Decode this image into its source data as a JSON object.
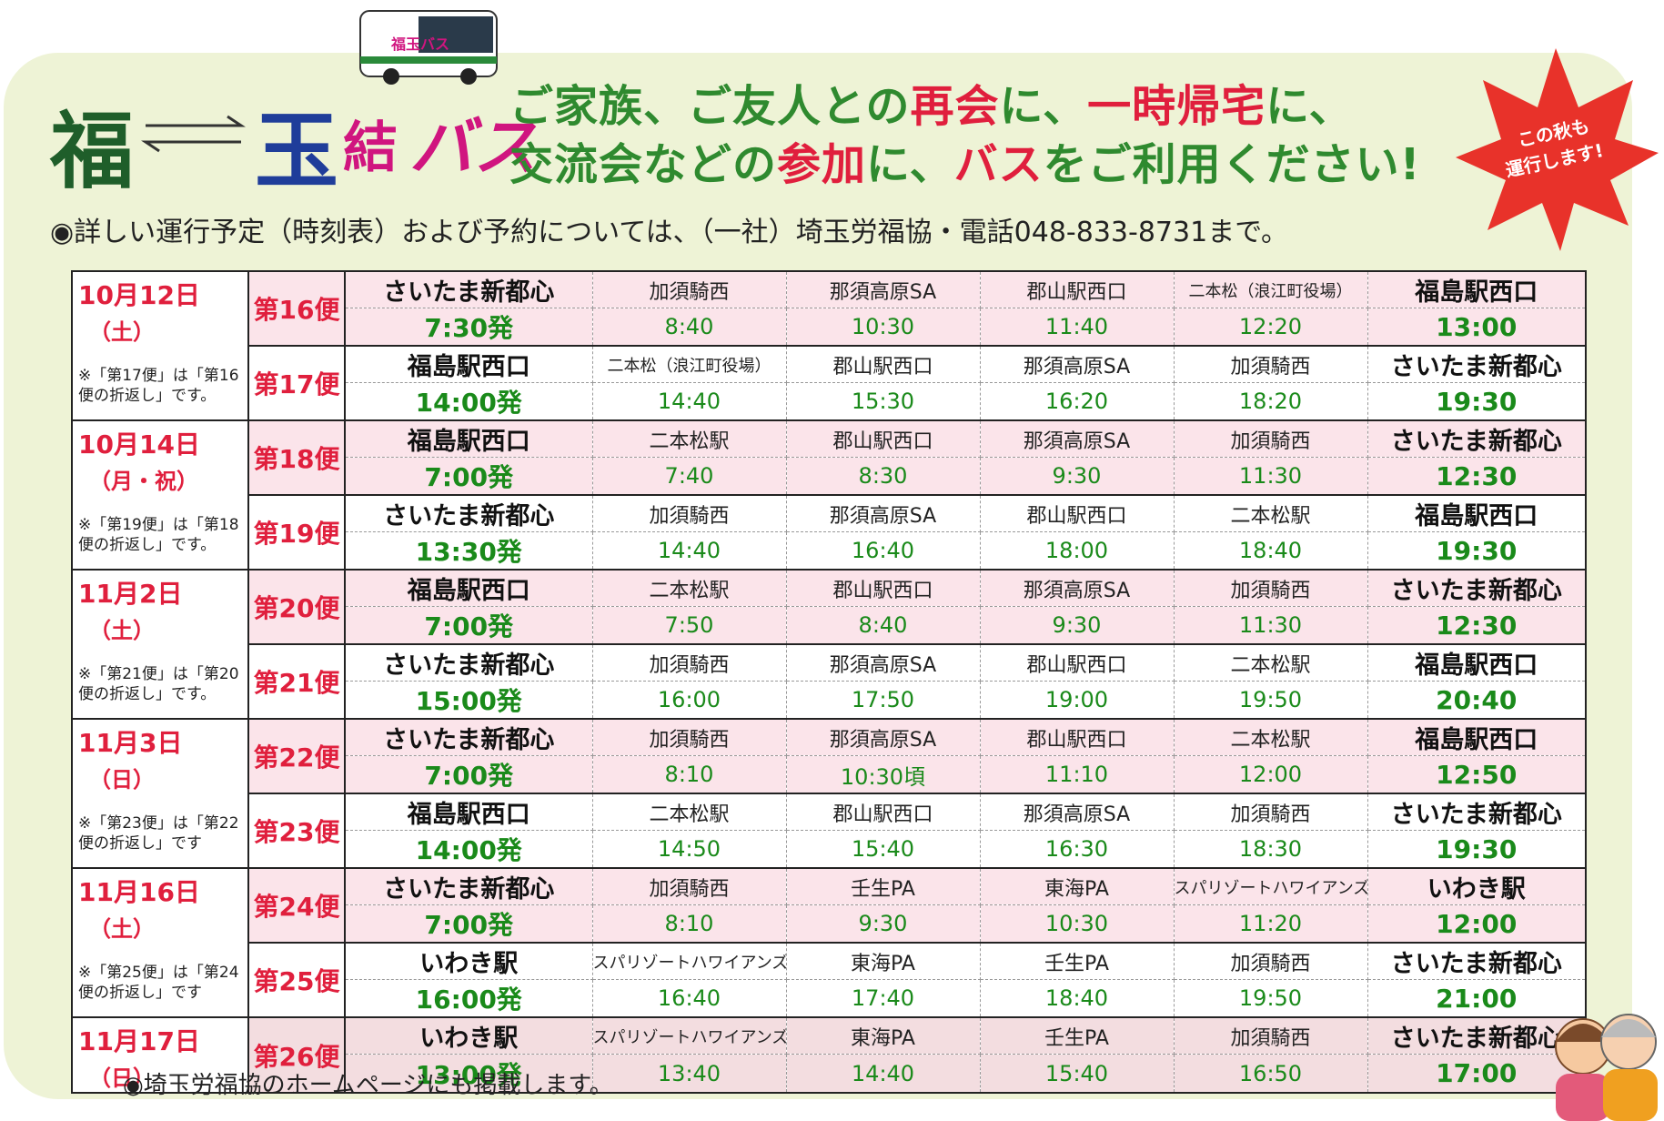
{
  "header": {
    "title": [
      {
        "text": "福",
        "color": "#1f5e2a"
      },
      {
        "text": "玉",
        "color": "#1f3d9a"
      },
      {
        "text": "結",
        "color": "#d0157f"
      },
      {
        "text": "バス",
        "color": "#d0157f"
      }
    ],
    "headline": [
      [
        {
          "text": "ご家族、ご友人との",
          "color": "#2f8a2f"
        },
        {
          "text": "再会",
          "color": "#e01f3d"
        },
        {
          "text": "に、",
          "color": "#2f8a2f"
        },
        {
          "text": "一時帰宅",
          "color": "#e01f3d"
        },
        {
          "text": "に、",
          "color": "#2f8a2f"
        }
      ],
      [
        {
          "text": "交流会などの",
          "color": "#2f8a2f"
        },
        {
          "text": "参加",
          "color": "#e01f3d"
        },
        {
          "text": "に、",
          "color": "#2f8a2f"
        },
        {
          "text": "バス",
          "color": "#e01f3d"
        },
        {
          "text": "をご利用ください!",
          "color": "#2f8a2f"
        }
      ]
    ],
    "badge": [
      "この秋も",
      "運行します!"
    ],
    "note": "◉詳しい運行予定（時刻表）および予約については、（一社）埼玉労福協・電話048-833-8731まで。"
  },
  "table": {
    "days": [
      {
        "date": "10月12日",
        "day": "（土）",
        "note": "※「第17便」は「第16便の折返し」です。",
        "trips": [
          {
            "no": "第16便",
            "stops": [
              "さいたま新都心",
              "加須騎西",
              "那須高原SA",
              "郡山駅西口",
              "二本松（浪江町役場）",
              "福島駅西口"
            ],
            "times": [
              "7:30発",
              "8:40",
              "10:30",
              "11:40",
              "12:20",
              "13:00"
            ]
          },
          {
            "no": "第17便",
            "stops": [
              "福島駅西口",
              "二本松（浪江町役場）",
              "郡山駅西口",
              "那須高原SA",
              "加須騎西",
              "さいたま新都心"
            ],
            "times": [
              "14:00発",
              "14:40",
              "15:30",
              "16:20",
              "18:20",
              "19:30"
            ]
          }
        ]
      },
      {
        "date": "10月14日",
        "day": "（月・祝）",
        "note": "※「第19便」は「第18便の折返し」です。",
        "trips": [
          {
            "no": "第18便",
            "stops": [
              "福島駅西口",
              "二本松駅",
              "郡山駅西口",
              "那須高原SA",
              "加須騎西",
              "さいたま新都心"
            ],
            "times": [
              "7:00発",
              "7:40",
              "8:30",
              "9:30",
              "11:30",
              "12:30"
            ]
          },
          {
            "no": "第19便",
            "stops": [
              "さいたま新都心",
              "加須騎西",
              "那須高原SA",
              "郡山駅西口",
              "二本松駅",
              "福島駅西口"
            ],
            "times": [
              "13:30発",
              "14:40",
              "16:40",
              "18:00",
              "18:40",
              "19:30"
            ]
          }
        ]
      },
      {
        "date": "11月2日",
        "day": "（土）",
        "note": "※「第21便」は「第20便の折返し」です。",
        "trips": [
          {
            "no": "第20便",
            "stops": [
              "福島駅西口",
              "二本松駅",
              "郡山駅西口",
              "那須高原SA",
              "加須騎西",
              "さいたま新都心"
            ],
            "times": [
              "7:00発",
              "7:50",
              "8:40",
              "9:30",
              "11:30",
              "12:30"
            ]
          },
          {
            "no": "第21便",
            "stops": [
              "さいたま新都心",
              "加須騎西",
              "那須高原SA",
              "郡山駅西口",
              "二本松駅",
              "福島駅西口"
            ],
            "times": [
              "15:00発",
              "16:00",
              "17:50",
              "19:00",
              "19:50",
              "20:40"
            ]
          }
        ]
      },
      {
        "date": "11月3日",
        "day": "（日）",
        "note": "※「第23便」は「第22便の折返し」です",
        "trips": [
          {
            "no": "第22便",
            "stops": [
              "さいたま新都心",
              "加須騎西",
              "那須高原SA",
              "郡山駅西口",
              "二本松駅",
              "福島駅西口"
            ],
            "times": [
              "7:00発",
              "8:10",
              "10:30頃",
              "11:10",
              "12:00",
              "12:50"
            ]
          },
          {
            "no": "第23便",
            "stops": [
              "福島駅西口",
              "二本松駅",
              "郡山駅西口",
              "那須高原SA",
              "加須騎西",
              "さいたま新都心"
            ],
            "times": [
              "14:00発",
              "14:50",
              "15:40",
              "16:30",
              "18:30",
              "19:30"
            ]
          }
        ]
      },
      {
        "date": "11月16日",
        "day": "（土）",
        "note": "※「第25便」は「第24便の折返し」です",
        "trips": [
          {
            "no": "第24便",
            "stops": [
              "さいたま新都心",
              "加須騎西",
              "壬生PA",
              "東海PA",
              "スパリゾートハワイアンズ",
              "いわき駅"
            ],
            "times": [
              "7:00発",
              "8:10",
              "9:30",
              "10:30",
              "11:20",
              "12:00"
            ]
          },
          {
            "no": "第25便",
            "stops": [
              "いわき駅",
              "スパリゾートハワイアンズ",
              "東海PA",
              "壬生PA",
              "加須騎西",
              "さいたま新都心"
            ],
            "times": [
              "16:00発",
              "16:40",
              "17:40",
              "18:40",
              "19:50",
              "21:00"
            ]
          }
        ]
      },
      {
        "date": "11月17日",
        "day": "（日）",
        "trips": [
          {
            "no": "第26便",
            "stops": [
              "いわき駅",
              "スパリゾートハワイアンズ",
              "東海PA",
              "壬生PA",
              "加須騎西",
              "さいたま新都心"
            ],
            "times": [
              "13:00発",
              "13:40",
              "14:40",
              "15:40",
              "16:50",
              "17:00"
            ]
          }
        ]
      }
    ]
  },
  "footer": "◉埼玉労福協のホームページにも掲載します。"
}
